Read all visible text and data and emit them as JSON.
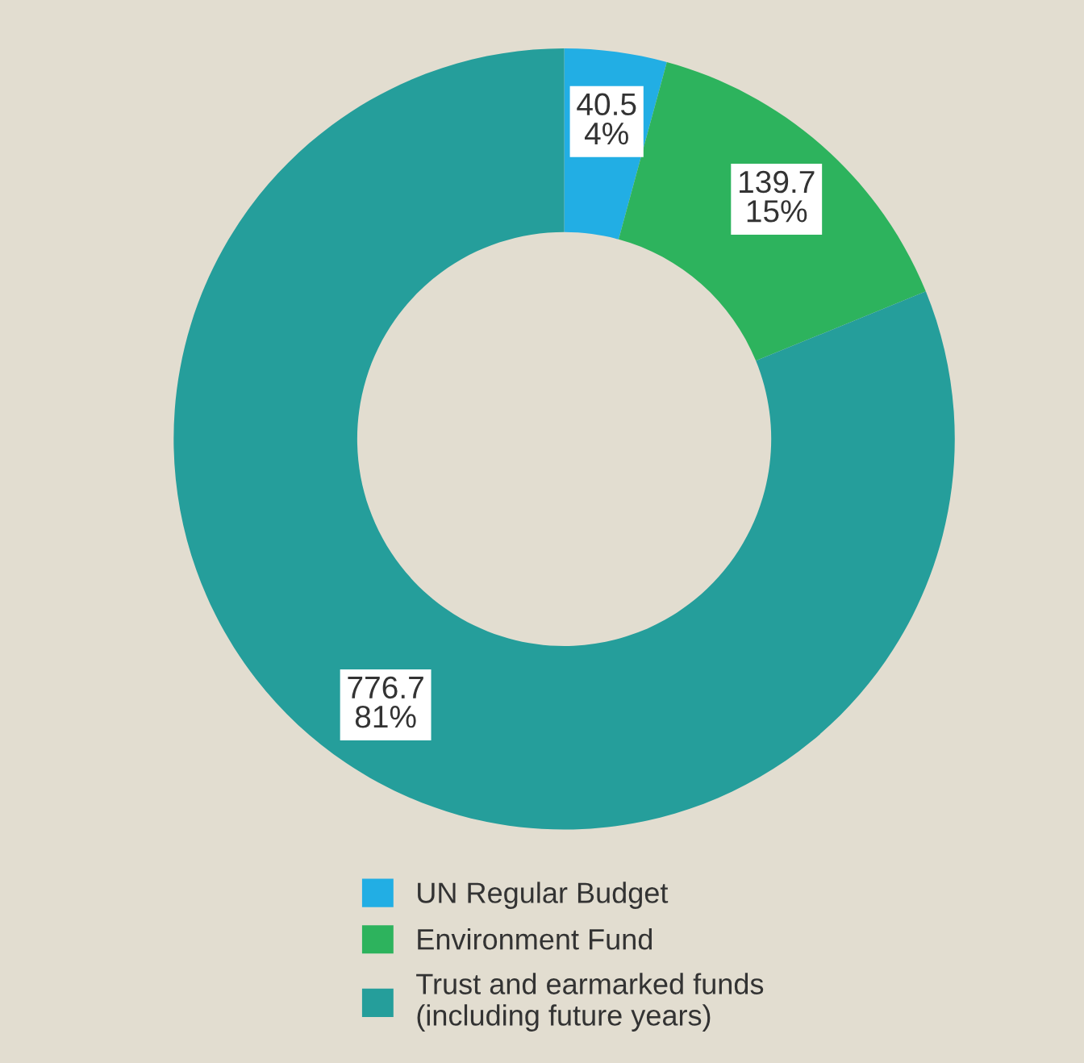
{
  "chart_data": {
    "type": "donut",
    "categories": [
      "UN Regular Budget",
      "Environment Fund",
      "Trust and earmarked funds\n(including future years)"
    ],
    "values": [
      40.5,
      139.7,
      776.7
    ],
    "colors": [
      "#22aee4",
      "#2db35d",
      "#259e9b"
    ],
    "value_labels": [
      "40.5\n4%",
      "139.7\n15%",
      "776.7\n81%"
    ],
    "legend": "bottom"
  }
}
